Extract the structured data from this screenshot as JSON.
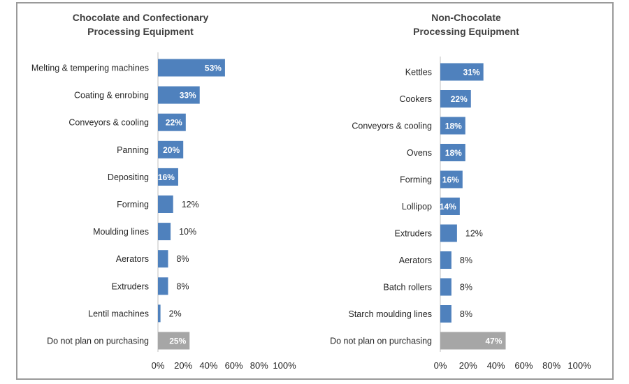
{
  "colors": {
    "primary_bar": "#4f81bd",
    "highlight_bar": "#a6a6a6"
  },
  "chart_data": [
    {
      "type": "bar",
      "orientation": "horizontal",
      "title": "Chocolate and Confectionary Processing Equipment",
      "title_lines": [
        "Chocolate and Confectionary",
        "Processing Equipment"
      ],
      "categories": [
        "Melting & tempering machines",
        "Coating & enrobing",
        "Conveyors & cooling",
        "Panning",
        "Depositing",
        "Forming",
        "Moulding lines",
        "Aerators",
        "Extruders",
        "Lentil machines",
        "Do not plan on purchasing"
      ],
      "values": [
        53,
        33,
        22,
        20,
        16,
        12,
        10,
        8,
        8,
        2,
        25
      ],
      "value_labels": [
        "53%",
        "33%",
        "22%",
        "20%",
        "16%",
        "12%",
        "10%",
        "8%",
        "8%",
        "2%",
        "25%"
      ],
      "highlight_category": "Do not plan on purchasing",
      "xlim": [
        0,
        100
      ],
      "xticks": [
        0,
        20,
        40,
        60,
        80,
        100
      ],
      "xtick_labels": [
        "0%",
        "20%",
        "40%",
        "60%",
        "80%",
        "100%"
      ],
      "grid": false,
      "legend": "none"
    },
    {
      "type": "bar",
      "orientation": "horizontal",
      "title": "Non-Chocolate Processing Equipment",
      "title_lines": [
        "Non-Chocolate",
        "Processing Equipment"
      ],
      "categories": [
        "Kettles",
        "Cookers",
        "Conveyors & cooling",
        "Ovens",
        "Forming",
        "Lollipop",
        "Extruders",
        "Aerators",
        "Batch rollers",
        "Starch moulding lines",
        "Do not plan on purchasing"
      ],
      "values": [
        31,
        22,
        18,
        18,
        16,
        14,
        12,
        8,
        8,
        8,
        47
      ],
      "value_labels": [
        "31%",
        "22%",
        "18%",
        "18%",
        "16%",
        "14%",
        "12%",
        "8%",
        "8%",
        "8%",
        "47%"
      ],
      "highlight_category": "Do not plan on purchasing",
      "xlim": [
        0,
        100
      ],
      "xticks": [
        0,
        20,
        40,
        60,
        80,
        100
      ],
      "xtick_labels": [
        "0%",
        "20%",
        "40%",
        "60%",
        "80%",
        "100%"
      ],
      "grid": false,
      "legend": "none"
    }
  ]
}
